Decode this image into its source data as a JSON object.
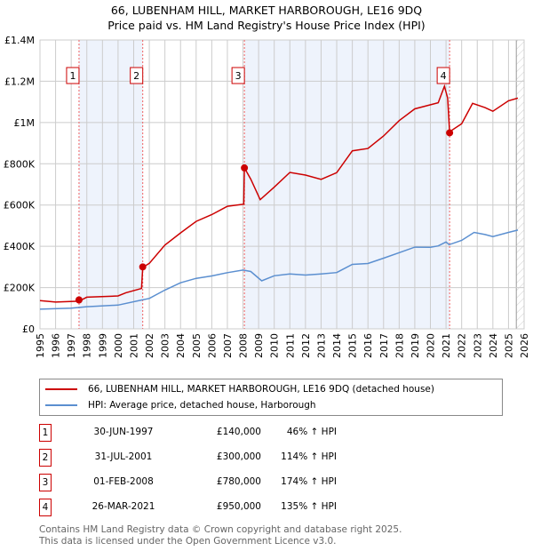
{
  "chart_data": {
    "type": "line",
    "title": "66, LUBENHAM HILL, MARKET HARBOROUGH, LE16 9DQ",
    "subtitle": "Price paid vs. HM Land Registry's House Price Index (HPI)",
    "xlim": [
      1995,
      2026
    ],
    "ylim": [
      0,
      1400000
    ],
    "x_ticks": [
      "1995",
      "1996",
      "1997",
      "1998",
      "1999",
      "2000",
      "2001",
      "2002",
      "2003",
      "2004",
      "2005",
      "2006",
      "2007",
      "2008",
      "2009",
      "2010",
      "2011",
      "2012",
      "2013",
      "2014",
      "2015",
      "2016",
      "2017",
      "2018",
      "2019",
      "2020",
      "2021",
      "2022",
      "2023",
      "2024",
      "2025",
      "2026"
    ],
    "y_ticks": [
      {
        "v": 0,
        "label": "£0"
      },
      {
        "v": 200000,
        "label": "£200K"
      },
      {
        "v": 400000,
        "label": "£400K"
      },
      {
        "v": 600000,
        "label": "£600K"
      },
      {
        "v": 800000,
        "label": "£800K"
      },
      {
        "v": 1000000,
        "label": "£1M"
      },
      {
        "v": 1200000,
        "label": "£1.2M"
      },
      {
        "v": 1400000,
        "label": "£1.4M"
      }
    ],
    "grid": true,
    "series": [
      {
        "name": "66, LUBENHAM HILL, MARKET HARBOROUGH, LE16 9DQ (detached house)",
        "color": "#cc0000",
        "x": [
          1995,
          1996,
          1997.5,
          1998,
          2000,
          2000.5,
          2001.5,
          2001.58,
          2002,
          2003,
          2004,
          2005,
          2006,
          2007,
          2008.05,
          2008.09,
          2008.5,
          2009.1,
          2010,
          2011,
          2012,
          2013,
          2014,
          2015,
          2016,
          2017,
          2018,
          2019,
          2020.5,
          2020.9,
          2021.1,
          2021.23,
          2022,
          2022.7,
          2023.5,
          2024,
          2025,
          2025.6
        ],
        "y": [
          137000,
          125000,
          140000,
          150000,
          158000,
          180000,
          190000,
          300000,
          320000,
          400000,
          470000,
          520000,
          550000,
          600000,
          600000,
          780000,
          730000,
          620000,
          690000,
          760000,
          740000,
          730000,
          755000,
          860000,
          880000,
          930000,
          1010000,
          1070000,
          1090000,
          1180000,
          1120000,
          950000,
          1000000,
          1090000,
          1070000,
          1060000,
          1100000,
          1120000
        ]
      },
      {
        "name": "HPI: Average price, detached house, Harborough",
        "color": "#5b8fd0",
        "x": [
          1995,
          1997,
          1998,
          2000,
          2001.5,
          2002,
          2003,
          2004,
          2005,
          2006,
          2007,
          2008,
          2008.5,
          2009.2,
          2010,
          2011,
          2012,
          2013,
          2014,
          2015,
          2016,
          2017,
          2018,
          2019,
          2020,
          2020.5,
          2021,
          2021.2,
          2022,
          2022.8,
          2023.5,
          2024,
          2025,
          2025.6
        ],
        "y": [
          95000,
          97000,
          108000,
          118000,
          138000,
          145000,
          190000,
          225000,
          242000,
          255000,
          275000,
          285000,
          275000,
          233000,
          260000,
          265000,
          258000,
          268000,
          275000,
          310000,
          315000,
          345000,
          370000,
          393000,
          395000,
          405000,
          420000,
          405000,
          430000,
          470000,
          455000,
          445000,
          470000,
          480000
        ]
      }
    ],
    "sales": [
      {
        "num": "1",
        "x": 1997.5,
        "y": 140000,
        "date": "30-JUN-1997",
        "price": "£140,000",
        "hpi": "46% ↑ HPI"
      },
      {
        "num": "2",
        "x": 2001.58,
        "y": 300000,
        "date": "31-JUL-2001",
        "price": "£300,000",
        "hpi": "114% ↑ HPI"
      },
      {
        "num": "3",
        "x": 2008.09,
        "y": 780000,
        "date": "01-FEB-2008",
        "price": "£780,000",
        "hpi": "174% ↑ HPI"
      },
      {
        "num": "4",
        "x": 2021.23,
        "y": 950000,
        "date": "26-MAR-2021",
        "price": "£950,000",
        "hpi": "135% ↑ HPI"
      }
    ],
    "forecast_start": 2025.5
  },
  "footer": {
    "line1": "Contains HM Land Registry data © Crown copyright and database right 2025.",
    "line2": "This data is licensed under the Open Government Licence v3.0."
  }
}
